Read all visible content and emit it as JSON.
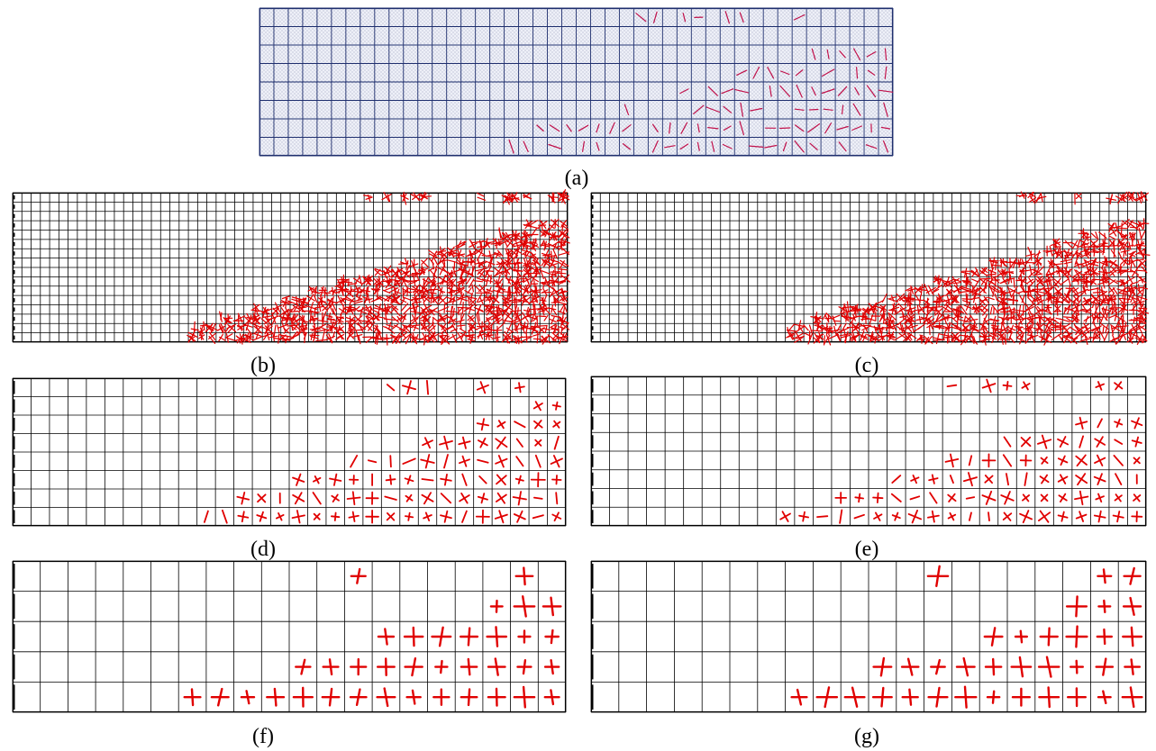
{
  "colors": {
    "grid": "#1f2f6e",
    "grid_plain": "#000000",
    "crack": "#e00000",
    "crack_a": "#c0104a",
    "stipple_bg": "#eef0f8"
  },
  "panels": [
    {
      "id": "a",
      "label": "(a)",
      "cols": 44,
      "rows": 8,
      "style": "stipple",
      "mark": "line"
    },
    {
      "id": "b",
      "label": "(b)",
      "cols": 60,
      "rows": 16,
      "style": "plain",
      "mark": "dense"
    },
    {
      "id": "c",
      "label": "(c)",
      "cols": 60,
      "rows": 16,
      "style": "plain",
      "mark": "dense"
    },
    {
      "id": "d",
      "label": "(d)",
      "cols": 30,
      "rows": 8,
      "style": "plain",
      "mark": "cross"
    },
    {
      "id": "e",
      "label": "(e)",
      "cols": 30,
      "rows": 8,
      "style": "plain",
      "mark": "cross"
    },
    {
      "id": "f",
      "label": "(f)",
      "cols": 20,
      "rows": 5,
      "style": "plain",
      "mark": "plus"
    },
    {
      "id": "g",
      "label": "(g)",
      "cols": 20,
      "rows": 5,
      "style": "plain",
      "mark": "plus"
    }
  ]
}
